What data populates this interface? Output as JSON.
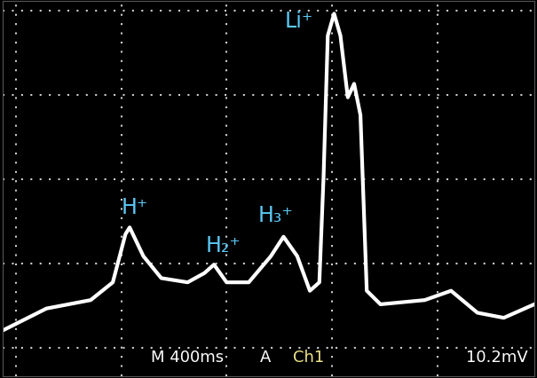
{
  "chart_data": {
    "type": "line",
    "x": [
      -0.125,
      0.29,
      0.71,
      0.92,
      1.04,
      1.08,
      1.21,
      1.38,
      1.63,
      1.79,
      1.88,
      2.0,
      2.21,
      2.42,
      2.54,
      2.67,
      2.79,
      2.88,
      2.92,
      2.96,
      3.02,
      3.08,
      3.15,
      3.21,
      3.27,
      3.33,
      3.46,
      3.88,
      4.13,
      4.38,
      4.63,
      4.92
    ],
    "values": [
      0.21,
      0.47,
      0.57,
      0.78,
      1.35,
      1.43,
      1.09,
      0.83,
      0.78,
      0.89,
      0.99,
      0.78,
      0.78,
      1.09,
      1.32,
      1.09,
      0.68,
      0.78,
      2.03,
      3.7,
      3.96,
      3.7,
      2.97,
      3.13,
      2.76,
      0.68,
      0.52,
      0.57,
      0.68,
      0.42,
      0.36,
      0.52
    ],
    "color": "#ffffff",
    "xlim": [
      -0.125,
      4.92
    ],
    "xticks": [
      0,
      1,
      2,
      3,
      4
    ],
    "ylim": [
      -0.33,
      4.11
    ],
    "yticks": [
      0,
      1,
      2,
      3,
      4
    ],
    "grid": true,
    "tick_labels": false,
    "annotations": [
      {
        "text": "H⁺",
        "x": 1.0,
        "y": 1.55,
        "color": "#5bc8f5"
      },
      {
        "text": "H₂⁺",
        "x": 1.8,
        "y": 1.1,
        "color": "#5bc8f5"
      },
      {
        "text": "H₃⁺",
        "x": 2.3,
        "y": 1.45,
        "color": "#5bc8f5"
      },
      {
        "text": "Li⁺",
        "x": 2.55,
        "y": 3.75,
        "color": "#5bc8f5"
      }
    ],
    "status": [
      {
        "text": "M 400ms",
        "color": "#ffffff"
      },
      {
        "text": "A",
        "color": "#ffffff"
      },
      {
        "text": "Ch1",
        "color": "#f0e68c"
      },
      {
        "text": "10.2mV",
        "color": "#ffffff"
      }
    ]
  }
}
